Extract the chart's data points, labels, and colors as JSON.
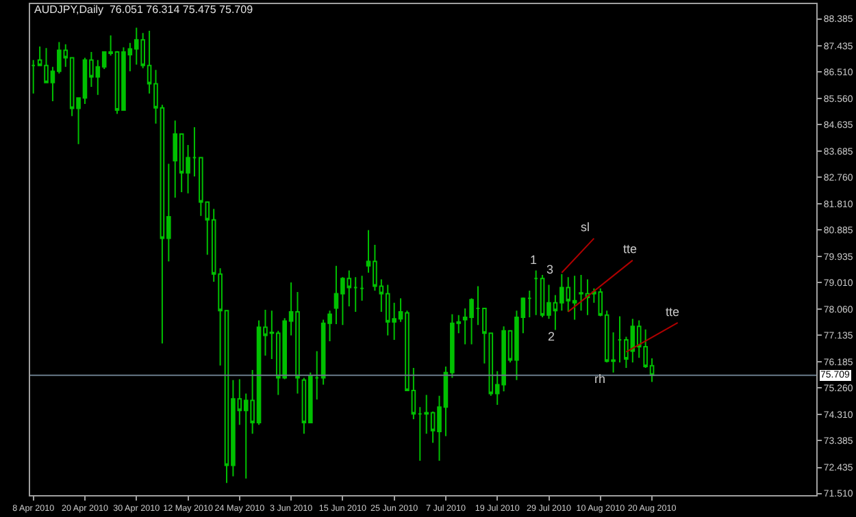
{
  "chart_data": {
    "type": "candlestick",
    "title": "AUDJPY,Daily  76.051 76.314 75.475 75.709",
    "color": "#00c000",
    "categories": [
      "8 Apr 2010",
      null,
      null,
      null,
      null,
      null,
      null,
      null,
      "20 Apr 2010",
      null,
      null,
      null,
      null,
      null,
      null,
      null,
      "30 Apr 2010",
      null,
      null,
      null,
      null,
      null,
      null,
      null,
      "12 May 2010",
      null,
      null,
      null,
      null,
      null,
      null,
      null,
      "24 May 2010",
      null,
      null,
      null,
      null,
      null,
      null,
      null,
      "3 Jun 2010",
      null,
      null,
      null,
      null,
      null,
      null,
      null,
      "15 Jun 2010",
      null,
      null,
      null,
      null,
      null,
      null,
      null,
      "25 Jun 2010",
      null,
      null,
      null,
      null,
      null,
      null,
      null,
      "7 Jul 2010",
      null,
      null,
      null,
      null,
      null,
      null,
      null,
      "19 Jul 2010",
      null,
      null,
      null,
      null,
      null,
      null,
      null,
      "29 Jul 2010",
      null,
      null,
      null,
      null,
      null,
      null,
      null,
      "10 Aug 2010",
      null,
      null,
      null,
      null,
      null,
      null,
      null,
      "20 Aug 2010",
      null,
      null,
      null,
      null,
      null,
      null,
      null,
      null,
      null,
      null,
      null,
      null,
      null,
      null,
      null,
      null,
      null,
      null,
      null,
      null,
      null,
      null,
      null,
      null,
      null
    ],
    "ohlc": [
      [
        86.73,
        86.92,
        85.73,
        86.73
      ],
      [
        86.92,
        87.4,
        86.73,
        86.73
      ],
      [
        86.73,
        87.35,
        86.12,
        86.12
      ],
      [
        86.12,
        86.68,
        85.46,
        86.52
      ],
      [
        86.52,
        87.56,
        86.44,
        87.27
      ],
      [
        87.27,
        87.48,
        86.68,
        87.0
      ],
      [
        87.0,
        87.0,
        84.93,
        85.2
      ],
      [
        85.2,
        85.57,
        83.93,
        85.57
      ],
      [
        85.57,
        87.0,
        85.36,
        86.92
      ],
      [
        86.92,
        87.21,
        85.97,
        86.32
      ],
      [
        86.32,
        86.92,
        85.68,
        86.68
      ],
      [
        86.68,
        87.21,
        86.6,
        87.21
      ],
      [
        87.16,
        87.8,
        87.08,
        87.21
      ],
      [
        87.21,
        87.24,
        85.01,
        85.14
      ],
      [
        85.14,
        87.37,
        85.14,
        87.21
      ],
      [
        87.11,
        87.53,
        86.52,
        87.32
      ],
      [
        87.32,
        88.07,
        86.76,
        87.64
      ],
      [
        87.64,
        87.88,
        86.63,
        86.73
      ],
      [
        86.73,
        87.96,
        85.73,
        86.08
      ],
      [
        86.08,
        86.57,
        84.66,
        85.22
      ],
      [
        85.22,
        85.33,
        76.84,
        80.58
      ],
      [
        80.58,
        83.23,
        79.76,
        81.35
      ],
      [
        83.34,
        84.77,
        82.03,
        84.29
      ],
      [
        84.29,
        84.29,
        82.22,
        82.91
      ],
      [
        82.91,
        83.9,
        82.18,
        83.45
      ],
      [
        83.45,
        84.53,
        82.78,
        83.45
      ],
      [
        83.45,
        83.45,
        81.38,
        81.87
      ],
      [
        81.87,
        81.87,
        80.0,
        81.24
      ],
      [
        81.24,
        81.63,
        79.04,
        79.31
      ],
      [
        79.31,
        79.52,
        76.06,
        78.01
      ],
      [
        78.01,
        78.01,
        71.88,
        72.51
      ],
      [
        72.51,
        75.54,
        72.12,
        74.87
      ],
      [
        74.87,
        75.57,
        73.95,
        74.46
      ],
      [
        74.46,
        75.06,
        72.04,
        74.82
      ],
      [
        74.82,
        75.9,
        73.63,
        74.03
      ],
      [
        74.03,
        77.66,
        73.95,
        77.42
      ],
      [
        77.42,
        78.04,
        76.41,
        77.13
      ],
      [
        77.21,
        78.01,
        76.29,
        77.24
      ],
      [
        77.21,
        77.29,
        75.01,
        75.62
      ],
      [
        75.62,
        77.74,
        75.57,
        77.64
      ],
      [
        77.64,
        79.01,
        77.13,
        77.97
      ],
      [
        77.97,
        78.67,
        75.06,
        75.62
      ],
      [
        75.54,
        75.62,
        73.63,
        74.03
      ],
      [
        74.03,
        75.81,
        74.03,
        75.7
      ],
      [
        75.62,
        76.57,
        74.85,
        75.62
      ],
      [
        75.62,
        77.69,
        75.38,
        77.56
      ],
      [
        77.56,
        78.01,
        76.92,
        77.88
      ],
      [
        78.1,
        79.6,
        77.53,
        78.61
      ],
      [
        78.61,
        79.2,
        77.5,
        79.15
      ],
      [
        79.15,
        79.44,
        78.16,
        78.83
      ],
      [
        78.83,
        79.2,
        77.97,
        78.83
      ],
      [
        78.8,
        79.25,
        78.36,
        78.8
      ],
      [
        79.6,
        80.87,
        79.36,
        79.76
      ],
      [
        79.76,
        80.35,
        78.72,
        78.88
      ],
      [
        78.88,
        79.12,
        77.97,
        78.61
      ],
      [
        78.61,
        78.93,
        77.13,
        77.61
      ],
      [
        77.61,
        78.29,
        76.97,
        77.72
      ],
      [
        77.72,
        78.45,
        77.61,
        77.97
      ],
      [
        77.93,
        78.01,
        75.17,
        75.17
      ],
      [
        75.17,
        75.97,
        74.15,
        74.34
      ],
      [
        74.34,
        74.58,
        72.67,
        74.34
      ],
      [
        74.34,
        75.01,
        73.63,
        74.38
      ],
      [
        74.38,
        74.42,
        73.31,
        73.74
      ],
      [
        73.71,
        74.98,
        72.67,
        74.58
      ],
      [
        74.58,
        76.02,
        73.55,
        75.81
      ],
      [
        75.81,
        77.88,
        75.62,
        77.56
      ],
      [
        77.56,
        77.85,
        77.21,
        77.61
      ],
      [
        77.69,
        78.09,
        76.81,
        77.77
      ],
      [
        77.77,
        78.45,
        76.81,
        78.4
      ],
      [
        78.09,
        78.88,
        77.5,
        78.09
      ],
      [
        78.09,
        78.09,
        76.13,
        77.21
      ],
      [
        77.21,
        77.21,
        74.98,
        75.06
      ],
      [
        75.06,
        75.86,
        74.66,
        75.38
      ],
      [
        75.38,
        77.45,
        75.14,
        77.29
      ],
      [
        77.29,
        77.29,
        76.17,
        76.25
      ],
      [
        76.25,
        78.01,
        75.54,
        77.77
      ],
      [
        77.77,
        78.48,
        77.21,
        78.45
      ],
      [
        78.45,
        78.72,
        77.77,
        78.45
      ],
      [
        79.15,
        79.44,
        77.85,
        79.15
      ],
      [
        79.15,
        79.28,
        77.77,
        77.85
      ],
      [
        77.85,
        78.93,
        77.72,
        78.29
      ],
      [
        78.29,
        78.56,
        77.32,
        78.01
      ],
      [
        78.29,
        79.31,
        78.01,
        78.83
      ],
      [
        78.83,
        79.2,
        77.97,
        78.36
      ],
      [
        78.36,
        79.25,
        77.69,
        78.29
      ],
      [
        78.64,
        79.28,
        78.01,
        78.61
      ],
      [
        78.61,
        79.12,
        77.85,
        78.48
      ],
      [
        78.61,
        78.8,
        78.29,
        78.67
      ],
      [
        78.67,
        78.8,
        77.81,
        77.85
      ],
      [
        77.85,
        78.01,
        76.17,
        76.21
      ],
      [
        76.21,
        77.24,
        75.81,
        76.25
      ],
      [
        76.97,
        77.81,
        76.17,
        76.97
      ],
      [
        76.97,
        77.08,
        75.97,
        76.29
      ],
      [
        76.57,
        77.72,
        76.17,
        77.45
      ],
      [
        77.45,
        77.66,
        76.33,
        76.73
      ],
      [
        76.73,
        77.34,
        75.97,
        76.02
      ],
      [
        76.051,
        76.314,
        75.475,
        75.709
      ],
      null,
      null,
      null,
      null,
      null,
      null,
      null,
      null,
      null,
      null,
      null,
      null,
      null,
      null,
      null,
      null,
      null,
      null,
      null,
      null,
      null,
      null,
      null,
      null,
      null
    ],
    "series": [
      {
        "type": "line",
        "color": "#b00000",
        "values": [
          null,
          null,
          null,
          null,
          null,
          null,
          null,
          null,
          null,
          null,
          null,
          null,
          null,
          null,
          null,
          null,
          null,
          null,
          null,
          null,
          null,
          null,
          null,
          null,
          null,
          null,
          null,
          null,
          null,
          null,
          null,
          null,
          null,
          null,
          null,
          null,
          null,
          null,
          null,
          null,
          null,
          null,
          null,
          null,
          null,
          null,
          null,
          null,
          null,
          null,
          null,
          null,
          null,
          null,
          null,
          null,
          null,
          null,
          null,
          null,
          null,
          null,
          null,
          null,
          null,
          null,
          null,
          null,
          null,
          null,
          null,
          null,
          null,
          null,
          null,
          null,
          null,
          null,
          null,
          null,
          null,
          null,
          79.36,
          null,
          null,
          null,
          null,
          80.58,
          null,
          null,
          null,
          null,
          null,
          null,
          null,
          null,
          null,
          null,
          null,
          null,
          null,
          null,
          null,
          null,
          null,
          null,
          null,
          null,
          null,
          null,
          null,
          null,
          null,
          null,
          null,
          null,
          null,
          null,
          null,
          null,
          null,
          null
        ]
      },
      {
        "type": "line",
        "color": "#b00000",
        "values": [
          null,
          null,
          null,
          null,
          null,
          null,
          null,
          null,
          null,
          null,
          null,
          null,
          null,
          null,
          null,
          null,
          null,
          null,
          null,
          null,
          null,
          null,
          null,
          null,
          null,
          null,
          null,
          null,
          null,
          null,
          null,
          null,
          null,
          null,
          null,
          null,
          null,
          null,
          null,
          null,
          null,
          null,
          null,
          null,
          null,
          null,
          null,
          null,
          null,
          null,
          null,
          null,
          null,
          null,
          null,
          null,
          null,
          null,
          null,
          null,
          null,
          null,
          null,
          null,
          null,
          null,
          null,
          null,
          null,
          null,
          null,
          null,
          null,
          null,
          null,
          null,
          null,
          null,
          null,
          null,
          null,
          null,
          null,
          77.97,
          null,
          null,
          null,
          null,
          null,
          null,
          null,
          null,
          null,
          79.8,
          null,
          null,
          null,
          null,
          null,
          null,
          null,
          null,
          null,
          null,
          null,
          null,
          null,
          null,
          null,
          null,
          null,
          null,
          null,
          null,
          null,
          null,
          null,
          null,
          null,
          null,
          null,
          null
        ]
      },
      {
        "type": "line",
        "color": "#b00000",
        "values": [
          null,
          null,
          null,
          null,
          null,
          null,
          null,
          null,
          null,
          null,
          null,
          null,
          null,
          null,
          null,
          null,
          null,
          null,
          null,
          null,
          null,
          null,
          null,
          null,
          null,
          null,
          null,
          null,
          null,
          null,
          null,
          null,
          null,
          null,
          null,
          null,
          null,
          null,
          null,
          null,
          null,
          null,
          null,
          null,
          null,
          null,
          null,
          null,
          null,
          null,
          null,
          null,
          null,
          null,
          null,
          null,
          null,
          null,
          null,
          null,
          null,
          null,
          null,
          null,
          null,
          null,
          null,
          null,
          null,
          null,
          null,
          null,
          null,
          null,
          null,
          null,
          null,
          null,
          null,
          null,
          null,
          null,
          null,
          null,
          null,
          null,
          null,
          null,
          null,
          null,
          null,
          null,
          76.54,
          null,
          null,
          null,
          null,
          null,
          null,
          null,
          77.58,
          null,
          null,
          null,
          null,
          null,
          null,
          null,
          null,
          null,
          null,
          null,
          null,
          null,
          null,
          null,
          null,
          null,
          null,
          null,
          null,
          null
        ]
      }
    ],
    "ylim": [
      71.45,
      88.91
    ],
    "yticks": [
      88.385,
      87.435,
      {
        "value": 86.51,
        "label": "86.510"
      },
      {
        "value": 85.56,
        "label": "85.560"
      },
      84.635,
      83.685,
      {
        "value": 82.76,
        "label": "82.760"
      },
      {
        "value": 81.81,
        "label": "81.810"
      },
      80.885,
      79.935,
      {
        "value": 79.01,
        "label": "79.010"
      },
      {
        "value": 78.06,
        "label": "78.060"
      },
      77.135,
      76.185,
      {
        "value": 75.26,
        "label": "75.260"
      },
      {
        "value": 74.31,
        "label": "74.310"
      },
      73.385,
      72.435,
      {
        "value": 71.51,
        "label": "71.510"
      }
    ],
    "ref_lines": [
      {
        "axis": "y",
        "value": 75.709,
        "label": "75.709",
        "color": "#6a7b8b"
      }
    ],
    "annotations": [
      "1",
      "3",
      "2",
      {
        "text": "sl",
        "y": 80.58
      },
      {
        "text": "tte",
        "y": 79.8
      },
      {
        "text": "tte",
        "y": 77.58
      },
      "rh"
    ],
    "grid": false
  }
}
